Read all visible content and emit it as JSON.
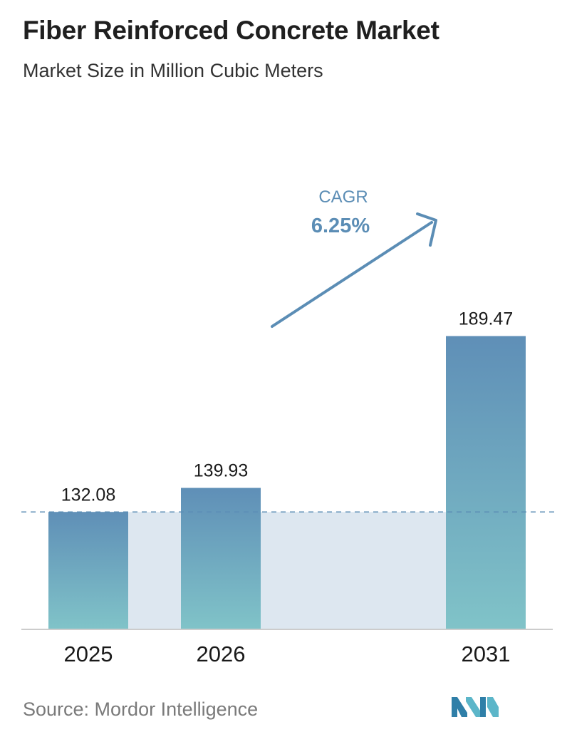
{
  "title": "Fiber Reinforced Concrete Market",
  "subtitle": "Market Size in Million Cubic Meters",
  "source": "Source:  Mordor Intelligence",
  "cagr": {
    "label": "CAGR",
    "value": "6.25%"
  },
  "colors": {
    "bar_top": "#5f8fb7",
    "bar_bottom": "#80c3c8",
    "band": "#dde7f0",
    "accent": "#5b8db5",
    "axis": "#cccccc",
    "logo": "#3a8fb0"
  },
  "chart_data": {
    "type": "bar",
    "title": "Fiber Reinforced Concrete Market",
    "subtitle": "Market Size in Million Cubic Meters",
    "categories": [
      "2025",
      "2026",
      "2031"
    ],
    "values": [
      132.08,
      139.93,
      189.47
    ],
    "value_labels": [
      "132.08",
      "139.93",
      "189.47"
    ],
    "reference_line": 132.08,
    "annotation": "CAGR 6.25%",
    "grid": false
  }
}
